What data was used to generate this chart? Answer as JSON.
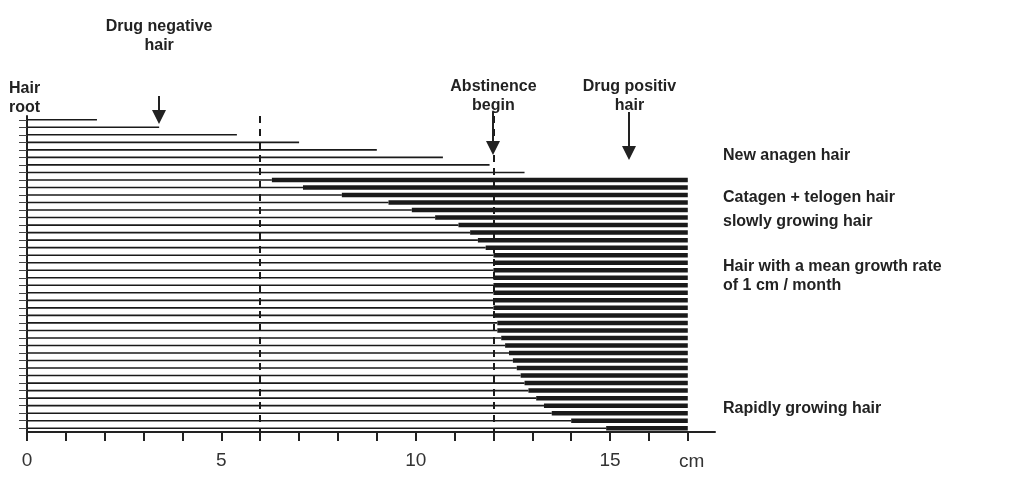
{
  "chart_data": {
    "type": "bar",
    "orientation": "horizontal",
    "stacked": true,
    "categories": [
      null,
      null,
      null,
      null,
      null,
      null,
      null,
      null,
      null,
      null,
      null,
      null,
      null,
      null,
      null,
      null,
      null,
      null,
      null,
      null,
      null,
      null,
      null,
      null,
      null,
      null,
      null,
      null,
      null,
      null,
      null,
      null,
      null,
      null,
      null,
      null,
      null,
      null,
      null,
      null,
      null,
      null
    ],
    "series": [
      {
        "color": "#1a1a1a",
        "values": [
          1.8,
          3.4,
          5.4,
          7.0,
          9.0,
          10.7,
          11.9,
          12.8,
          6.3,
          7.1,
          8.1,
          9.3,
          9.9,
          10.5,
          11.1,
          11.4,
          11.6,
          11.8,
          12,
          12,
          12,
          12,
          12,
          12,
          12,
          12,
          12,
          12.1,
          12.1,
          12.2,
          12.3,
          12.4,
          12.5,
          12.6,
          12.7,
          12.8,
          12.9,
          13.1,
          13.3,
          13.5,
          14.0,
          14.9
        ]
      },
      {
        "color": "#1a1a1a",
        "values": [
          null,
          null,
          null,
          null,
          null,
          null,
          null,
          null,
          10.7,
          9.9,
          8.9,
          7.7,
          7.1,
          6.5,
          5.9,
          5.6,
          5.4,
          5.2,
          5,
          5,
          5,
          5,
          5,
          5,
          5,
          5,
          5,
          4.9,
          4.9,
          4.8,
          4.7,
          4.6,
          4.5,
          4.4,
          4.3,
          4.2,
          4.1,
          3.9,
          3.7,
          3.5,
          3.0,
          2.1
        ]
      }
    ],
    "xlim": [
      0,
      17.7
    ],
    "xticks": [
      0,
      {
        "value": 1,
        "label": null
      },
      {
        "value": 2,
        "label": null
      },
      {
        "value": 3,
        "label": null
      },
      {
        "value": 4,
        "label": null
      },
      5,
      {
        "value": 6,
        "label": null
      },
      {
        "value": 7,
        "label": null
      },
      {
        "value": 8,
        "label": null
      },
      {
        "value": 9,
        "label": null
      },
      10,
      {
        "value": 11,
        "label": null
      },
      {
        "value": 12,
        "label": null
      },
      {
        "value": 13,
        "label": null
      },
      {
        "value": 14,
        "label": null
      },
      15,
      {
        "value": 16,
        "label": null
      },
      {
        "value": 17,
        "label": null
      }
    ],
    "xlabel": "cm",
    "ref_lines": [
      {
        "axis": "x",
        "value": 6,
        "line_style": "dashed",
        "color": "#1a1a1a"
      },
      {
        "axis": "x",
        "value": 12,
        "line_style": "dashed",
        "color": "#1a1a1a"
      }
    ],
    "annotations": [
      "Hair root",
      "Drug negative hair",
      "Abstinence begin",
      "Drug positiv hair",
      "New anagen hair",
      "Catagen + telogen hair",
      "slowly growing hair",
      "Hair with a mean growth rate of 1 cm / month",
      "Rapidly growing hair"
    ]
  }
}
